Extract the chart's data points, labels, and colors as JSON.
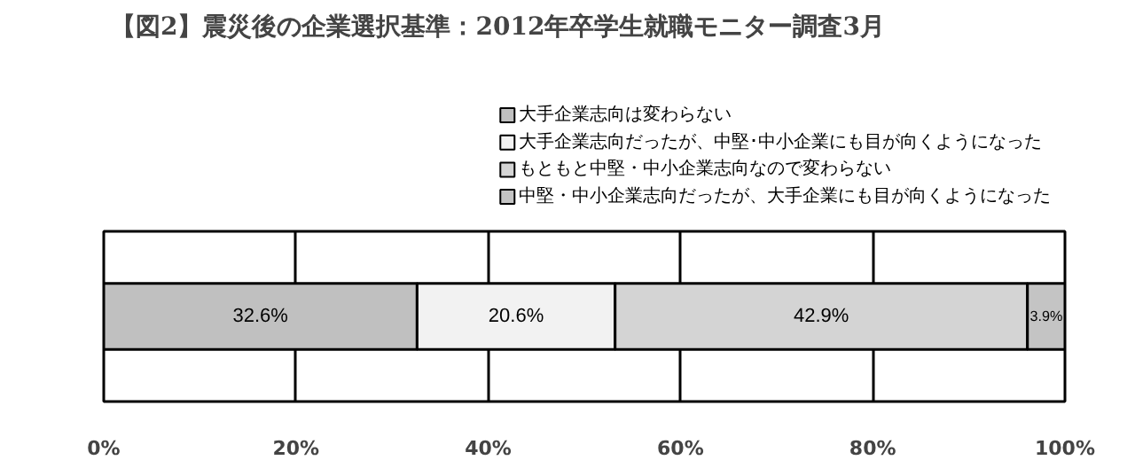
{
  "chart_data": {
    "type": "bar",
    "orientation": "horizontal",
    "stacked": true,
    "title": "【図2】震災後の企業選択基準：2012年卒学生就職モニター調査3月",
    "categories": [
      null
    ],
    "series": [
      {
        "name": "大手企業志向は変わらない",
        "color": "#c0c0c0",
        "values": [
          32.6
        ],
        "value_labels": [
          "32.6%"
        ]
      },
      {
        "name": "大手企業志向だったが、中堅･中小企業にも目が向くようになった",
        "color": "#f2f2f2",
        "values": [
          20.6
        ],
        "value_labels": [
          "20.6%"
        ]
      },
      {
        "name": "もともと中堅・中小企業志向なので変わらない",
        "color": "#d4d4d4",
        "values": [
          42.9
        ],
        "value_labels": [
          "42.9%"
        ]
      },
      {
        "name": "中堅・中小企業志向だったが、大手企業にも目が向くようになった",
        "color": "#c4c4c4",
        "values": [
          3.9
        ],
        "value_labels": [
          "3.9%"
        ]
      }
    ],
    "xlim": [
      0,
      100
    ],
    "xticks": [
      {
        "value": 0,
        "label": "0%"
      },
      {
        "value": 20,
        "label": "20%"
      },
      {
        "value": 40,
        "label": "40%"
      },
      {
        "value": 60,
        "label": "60%"
      },
      {
        "value": 80,
        "label": "80%"
      },
      {
        "value": 100,
        "label": "100%"
      }
    ],
    "grid": "x",
    "legend": "top"
  }
}
